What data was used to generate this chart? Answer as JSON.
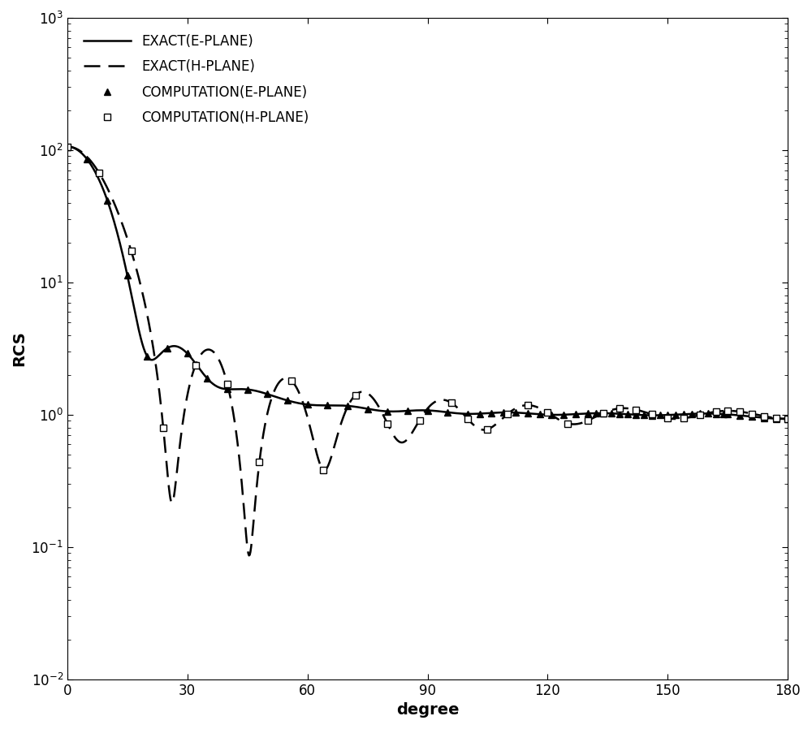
{
  "title": "",
  "xlabel": "degree",
  "ylabel": "RCS",
  "xlim": [
    0,
    180
  ],
  "ylim_log": [
    -2,
    3
  ],
  "xticks": [
    0,
    30,
    60,
    90,
    120,
    150,
    180
  ],
  "legend_entries": [
    "EXACT(E-PLANE)",
    "EXACT(H-PLANE)",
    "COMPUTATION(E-PLANE)",
    "COMPUTATION(H-PLANE)"
  ],
  "line_color": "#000000",
  "marker_color": "#000000",
  "background_color": "#ffffff",
  "legend_fontsize": 12,
  "axis_fontsize": 14,
  "tick_fontsize": 12,
  "ka": 10.0
}
